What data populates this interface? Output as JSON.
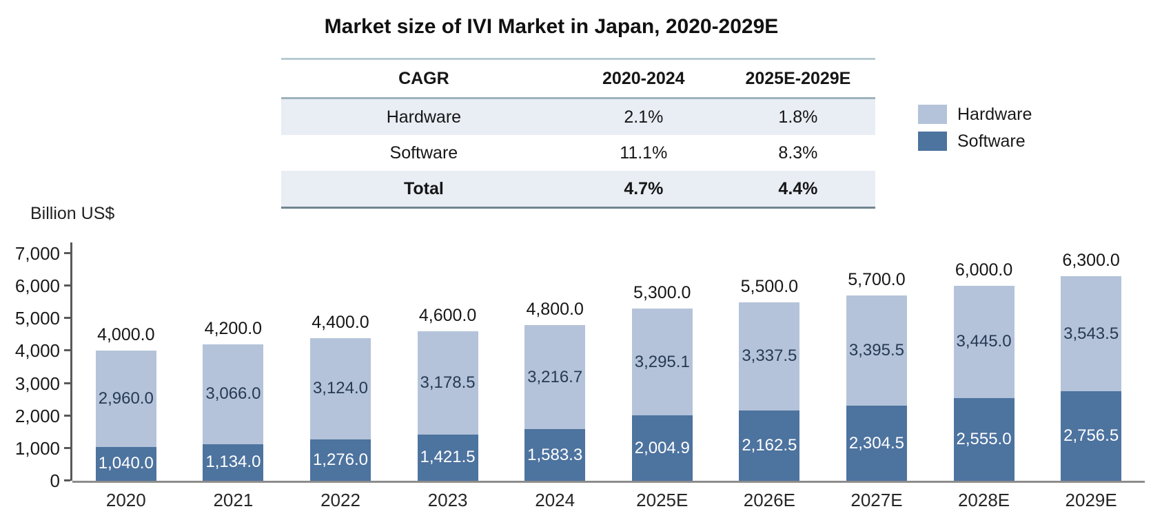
{
  "title": "Market size of IVI Market in Japan, 2020-2029E",
  "cagr_table": {
    "headers": [
      "CAGR",
      "2020-2024",
      "2025E-2029E"
    ],
    "rows": [
      {
        "label": "Hardware",
        "values": [
          "2.1%",
          "1.8%"
        ],
        "bold": false,
        "shaded": true
      },
      {
        "label": "Software",
        "values": [
          "11.1%",
          "8.3%"
        ],
        "bold": false,
        "shaded": false
      },
      {
        "label": "Total",
        "values": [
          "4.7%",
          "4.4%"
        ],
        "bold": true,
        "shaded": true
      }
    ]
  },
  "legend": {
    "position": "upper right",
    "items": [
      {
        "label": "Hardware",
        "color": "#b4c3d9"
      },
      {
        "label": "Software",
        "color": "#4d739f"
      }
    ]
  },
  "chart_data": {
    "type": "bar",
    "stacked": true,
    "title": "Market size of IVI Market in Japan, 2020-2029E",
    "xlabel": "",
    "ylabel": "Billion US$",
    "ylim": [
      0,
      7000
    ],
    "yticks": [
      0,
      1000,
      2000,
      3000,
      4000,
      5000,
      6000,
      7000
    ],
    "grid": false,
    "legend_position": "upper right",
    "categories": [
      "2020",
      "2021",
      "2022",
      "2023",
      "2024",
      "2025E",
      "2026E",
      "2027E",
      "2028E",
      "2029E"
    ],
    "stack_order_bottom_to_top": [
      "Software",
      "Hardware"
    ],
    "series": [
      {
        "name": "Hardware",
        "color": "#b4c3d9",
        "values": [
          2960.0,
          3066.0,
          3124.0,
          3178.5,
          3216.7,
          3295.1,
          3337.5,
          3395.5,
          3445.0,
          3543.5
        ]
      },
      {
        "name": "Software",
        "color": "#4d739f",
        "values": [
          1040.0,
          1134.0,
          1276.0,
          1421.5,
          1583.3,
          2004.9,
          2162.5,
          2304.5,
          2555.0,
          2756.5
        ]
      }
    ],
    "totals": [
      4000.0,
      4200.0,
      4400.0,
      4600.0,
      4800.0,
      5300.0,
      5500.0,
      5700.0,
      6000.0,
      6300.0
    ]
  }
}
